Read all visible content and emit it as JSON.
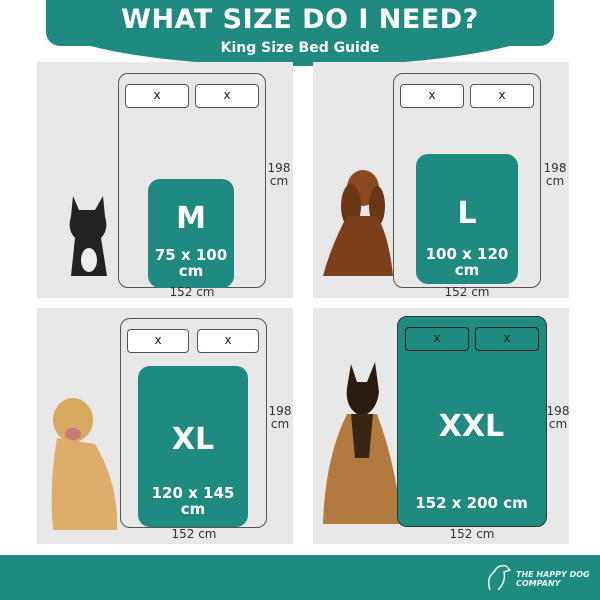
{
  "header": {
    "title": "WHAT SIZE DO I NEED?",
    "subtitle": "King Size Bed Guide"
  },
  "bed": {
    "length_label": "198 cm",
    "width_label": "152 cm",
    "pillow_mark": "x"
  },
  "sizes": [
    {
      "size": "M",
      "dimensions": "75 x 100 cm",
      "dog": "french-bulldog"
    },
    {
      "size": "L",
      "dimensions": "100 x 120 cm",
      "dog": "cocker-spaniel"
    },
    {
      "size": "XL",
      "dimensions": "120 x 145 cm",
      "dog": "golden-retriever"
    },
    {
      "size": "XXL",
      "dimensions": "152 x 200 cm",
      "dog": "german-shepherd"
    }
  ],
  "footer": {
    "logo": "THE HAPPY DOG COMPANY"
  },
  "colors": {
    "accent": "#1f8a80",
    "panel": "#e8e8e8"
  }
}
